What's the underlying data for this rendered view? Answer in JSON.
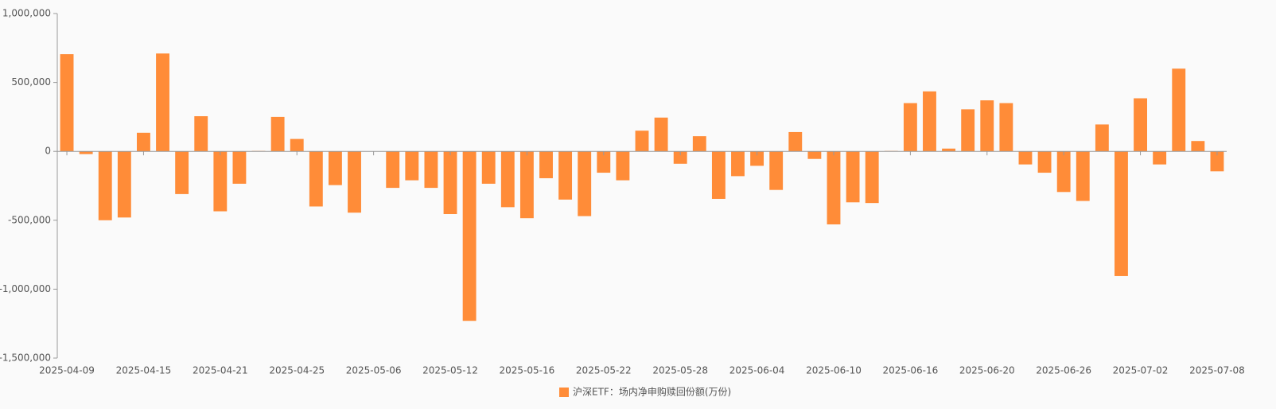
{
  "chart_data": {
    "type": "bar",
    "categories": [
      "2025-04-09",
      null,
      null,
      null,
      "2025-04-15",
      null,
      null,
      null,
      "2025-04-21",
      null,
      null,
      null,
      "2025-04-25",
      null,
      null,
      null,
      "2025-05-06",
      null,
      null,
      null,
      "2025-05-12",
      null,
      null,
      null,
      "2025-05-16",
      null,
      null,
      null,
      "2025-05-22",
      null,
      null,
      null,
      "2025-05-28",
      null,
      null,
      null,
      "2025-06-04",
      null,
      null,
      null,
      "2025-06-10",
      null,
      null,
      null,
      "2025-06-16",
      null,
      null,
      null,
      "2025-06-20",
      null,
      null,
      null,
      "2025-06-26",
      null,
      null,
      null,
      "2025-07-02",
      null,
      null,
      null,
      "2025-07-08"
    ],
    "series": [
      {
        "name": "沪深ETF：场内净申购赎回份额(万份)",
        "color": "#ff8c38",
        "values": [
          705000,
          -20000,
          -500000,
          -480000,
          135000,
          710000,
          -310000,
          255000,
          -435000,
          -235000,
          3000,
          250000,
          90000,
          -400000,
          -245000,
          -445000,
          0,
          -265000,
          -210000,
          -265000,
          -455000,
          -1230000,
          -235000,
          -405000,
          -485000,
          -195000,
          -350000,
          -470000,
          -155000,
          -210000,
          150000,
          245000,
          -90000,
          110000,
          -345000,
          -180000,
          -105000,
          -280000,
          140000,
          -55000,
          -530000,
          -370000,
          -375000,
          3000,
          350000,
          435000,
          20000,
          305000,
          370000,
          350000,
          -95000,
          -155000,
          -295000,
          -360000,
          195000,
          -905000,
          385000,
          -95000,
          600000,
          75000,
          -145000
        ]
      }
    ],
    "ylim": [
      -1500000,
      1000000
    ],
    "yticks": [
      {
        "value": -1500000,
        "label": "-1,500,000"
      },
      {
        "value": -1000000,
        "label": "-1,000,000"
      },
      {
        "value": -500000,
        "label": "-500,000"
      },
      0,
      {
        "value": 500000,
        "label": "500,000"
      },
      {
        "value": 1000000,
        "label": "1,000,000"
      }
    ],
    "legend": "bottom"
  }
}
